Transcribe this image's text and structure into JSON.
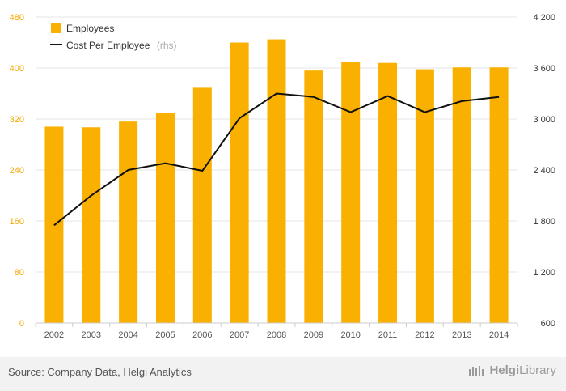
{
  "chart_data": {
    "type": "bar+line",
    "categories": [
      "2002",
      "2003",
      "2004",
      "2005",
      "2006",
      "2007",
      "2008",
      "2009",
      "2010",
      "2011",
      "2012",
      "2013",
      "2014"
    ],
    "series": [
      {
        "name": "Employees",
        "type": "bar",
        "axis": "left",
        "color": "#f9b000",
        "values": [
          308,
          307,
          316,
          329,
          369,
          440,
          445,
          396,
          410,
          408,
          398,
          401,
          401
        ]
      },
      {
        "name": "Cost Per Employee",
        "type": "line",
        "axis": "right",
        "color": "#111111",
        "values": [
          1750,
          2100,
          2400,
          2480,
          2390,
          3010,
          3300,
          3260,
          3080,
          3270,
          3080,
          3210,
          3260
        ]
      }
    ],
    "left_axis": {
      "min": 0,
      "max": 480,
      "ticks": [
        0,
        80,
        160,
        240,
        320,
        400,
        480
      ],
      "labels": [
        "0",
        "80",
        "160",
        "240",
        "320",
        "400",
        "480"
      ]
    },
    "right_axis": {
      "min": 600,
      "max": 4200,
      "ticks": [
        600,
        1200,
        1800,
        2400,
        3000,
        3600,
        4200
      ],
      "labels": [
        "600",
        "1 200",
        "1 800",
        "2 400",
        "3 000",
        "3 600",
        "4 200"
      ]
    },
    "grid": true,
    "legend": {
      "position": "top-left",
      "items": [
        {
          "label": "Employees",
          "suffix": ""
        },
        {
          "label": "Cost Per Employee",
          "suffix": "(rhs)"
        }
      ]
    }
  },
  "footer": {
    "source": "Source: Company Data, Helgi Analytics",
    "brand_main": "Helgi",
    "brand_sub": "Library"
  }
}
